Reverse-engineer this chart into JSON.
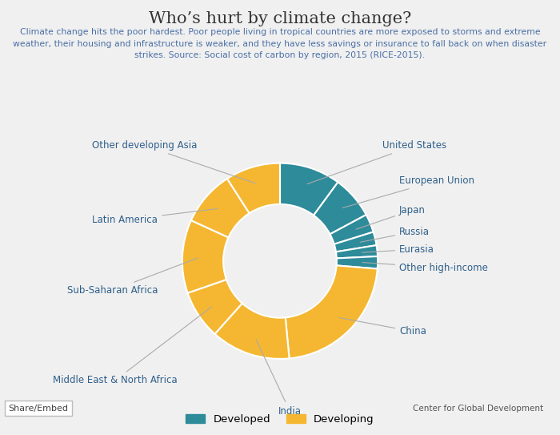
{
  "title": "Who’s hurt by climate change?",
  "subtitle": "Climate change hits the poor hardest. Poor people living in tropical countries are more exposed to storms and extreme\nweather, their housing and infrastructure is weaker, and they have less savings or insurance to fall back on when disaster\nstrikes. Source: Social cost of carbon by region, 2015 (RICE-2015).",
  "segments": [
    {
      "label": "United States",
      "value": 10.0,
      "color": "#2e8b9a",
      "type": "developed"
    },
    {
      "label": "European Union",
      "value": 7.0,
      "color": "#2e8b9a",
      "type": "developed"
    },
    {
      "label": "Japan",
      "value": 3.0,
      "color": "#2e8b9a",
      "type": "developed"
    },
    {
      "label": "Russia",
      "value": 2.2,
      "color": "#2e8b9a",
      "type": "developed"
    },
    {
      "label": "Eurasia",
      "value": 1.8,
      "color": "#2e8b9a",
      "type": "developed"
    },
    {
      "label": "Other high-income",
      "value": 2.0,
      "color": "#2e8b9a",
      "type": "developed"
    },
    {
      "label": "China",
      "value": 22.0,
      "color": "#f5b731",
      "type": "developing"
    },
    {
      "label": "India",
      "value": 13.0,
      "color": "#f5b731",
      "type": "developing"
    },
    {
      "label": "Middle East & North Africa",
      "value": 8.0,
      "color": "#f5b731",
      "type": "developing"
    },
    {
      "label": "Sub-Saharan Africa",
      "value": 12.0,
      "color": "#f5b731",
      "type": "developing"
    },
    {
      "label": "Latin America",
      "value": 9.0,
      "color": "#f5b731",
      "type": "developing"
    },
    {
      "label": "Other developing Asia",
      "value": 9.0,
      "color": "#f5b731",
      "type": "developing"
    }
  ],
  "bg_color": "#f0f0f0",
  "developed_color": "#2e8b9a",
  "developing_color": "#f5b731",
  "title_color": "#333333",
  "subtitle_color": "#4a6fa5",
  "label_color": "#2e5f8a",
  "wedge_edge_color": "white",
  "footer_left": "Share/Embed",
  "footer_right": "Center for Global Development"
}
